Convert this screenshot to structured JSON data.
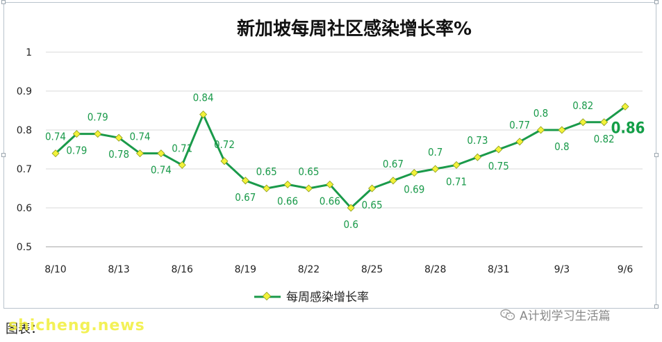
{
  "chart_data": {
    "type": "line",
    "title": "新加坡每周社区感染增长率%",
    "xlabel": "",
    "ylabel": "",
    "ylim": [
      0.5,
      1
    ],
    "yticks": [
      "0.5",
      "0.6",
      "0.7",
      "0.8",
      "0.9",
      "1"
    ],
    "x_tick_labels": [
      "8/10",
      "8/13",
      "8/16",
      "8/19",
      "8/22",
      "8/25",
      "8/28",
      "8/31",
      "9/3",
      "9/6"
    ],
    "grid": "horizontal",
    "legend": "bottom",
    "series": [
      {
        "name": "每周感染增长率",
        "color": "#1a9a4a",
        "marker_color": "#f2f23a",
        "values": [
          0.74,
          0.79,
          0.79,
          0.78,
          0.74,
          0.74,
          0.71,
          0.84,
          0.72,
          0.67,
          0.65,
          0.66,
          0.65,
          0.66,
          0.6,
          0.65,
          0.67,
          0.69,
          0.7,
          0.71,
          0.73,
          0.75,
          0.77,
          0.8,
          0.8,
          0.82,
          0.82,
          0.86
        ],
        "labels": [
          "0.74",
          "0.79",
          "0.79",
          "0.78",
          "0.74",
          "0.74",
          "0.71",
          "0.84",
          "0.72",
          "0.67",
          "0.65",
          "0.66",
          "0.65",
          "0.66",
          "0.6",
          "0.65",
          "0.67",
          "0.69",
          "0.7",
          "0.71",
          "0.73",
          "0.75",
          "0.77",
          "0.8",
          "0.8",
          "0.82",
          "0.82",
          "0.86"
        ],
        "label_pos": [
          "above",
          "below",
          "above",
          "below",
          "above",
          "below",
          "above",
          "above",
          "above",
          "below",
          "above",
          "below",
          "above",
          "below",
          "below",
          "below",
          "above",
          "below",
          "above",
          "below",
          "above",
          "below",
          "above",
          "above",
          "below",
          "above",
          "below",
          "below"
        ]
      }
    ]
  },
  "footer": {
    "source": "图表：",
    "watermark": "shicheng.news",
    "wechat_name": "A计划学习生活篇"
  }
}
